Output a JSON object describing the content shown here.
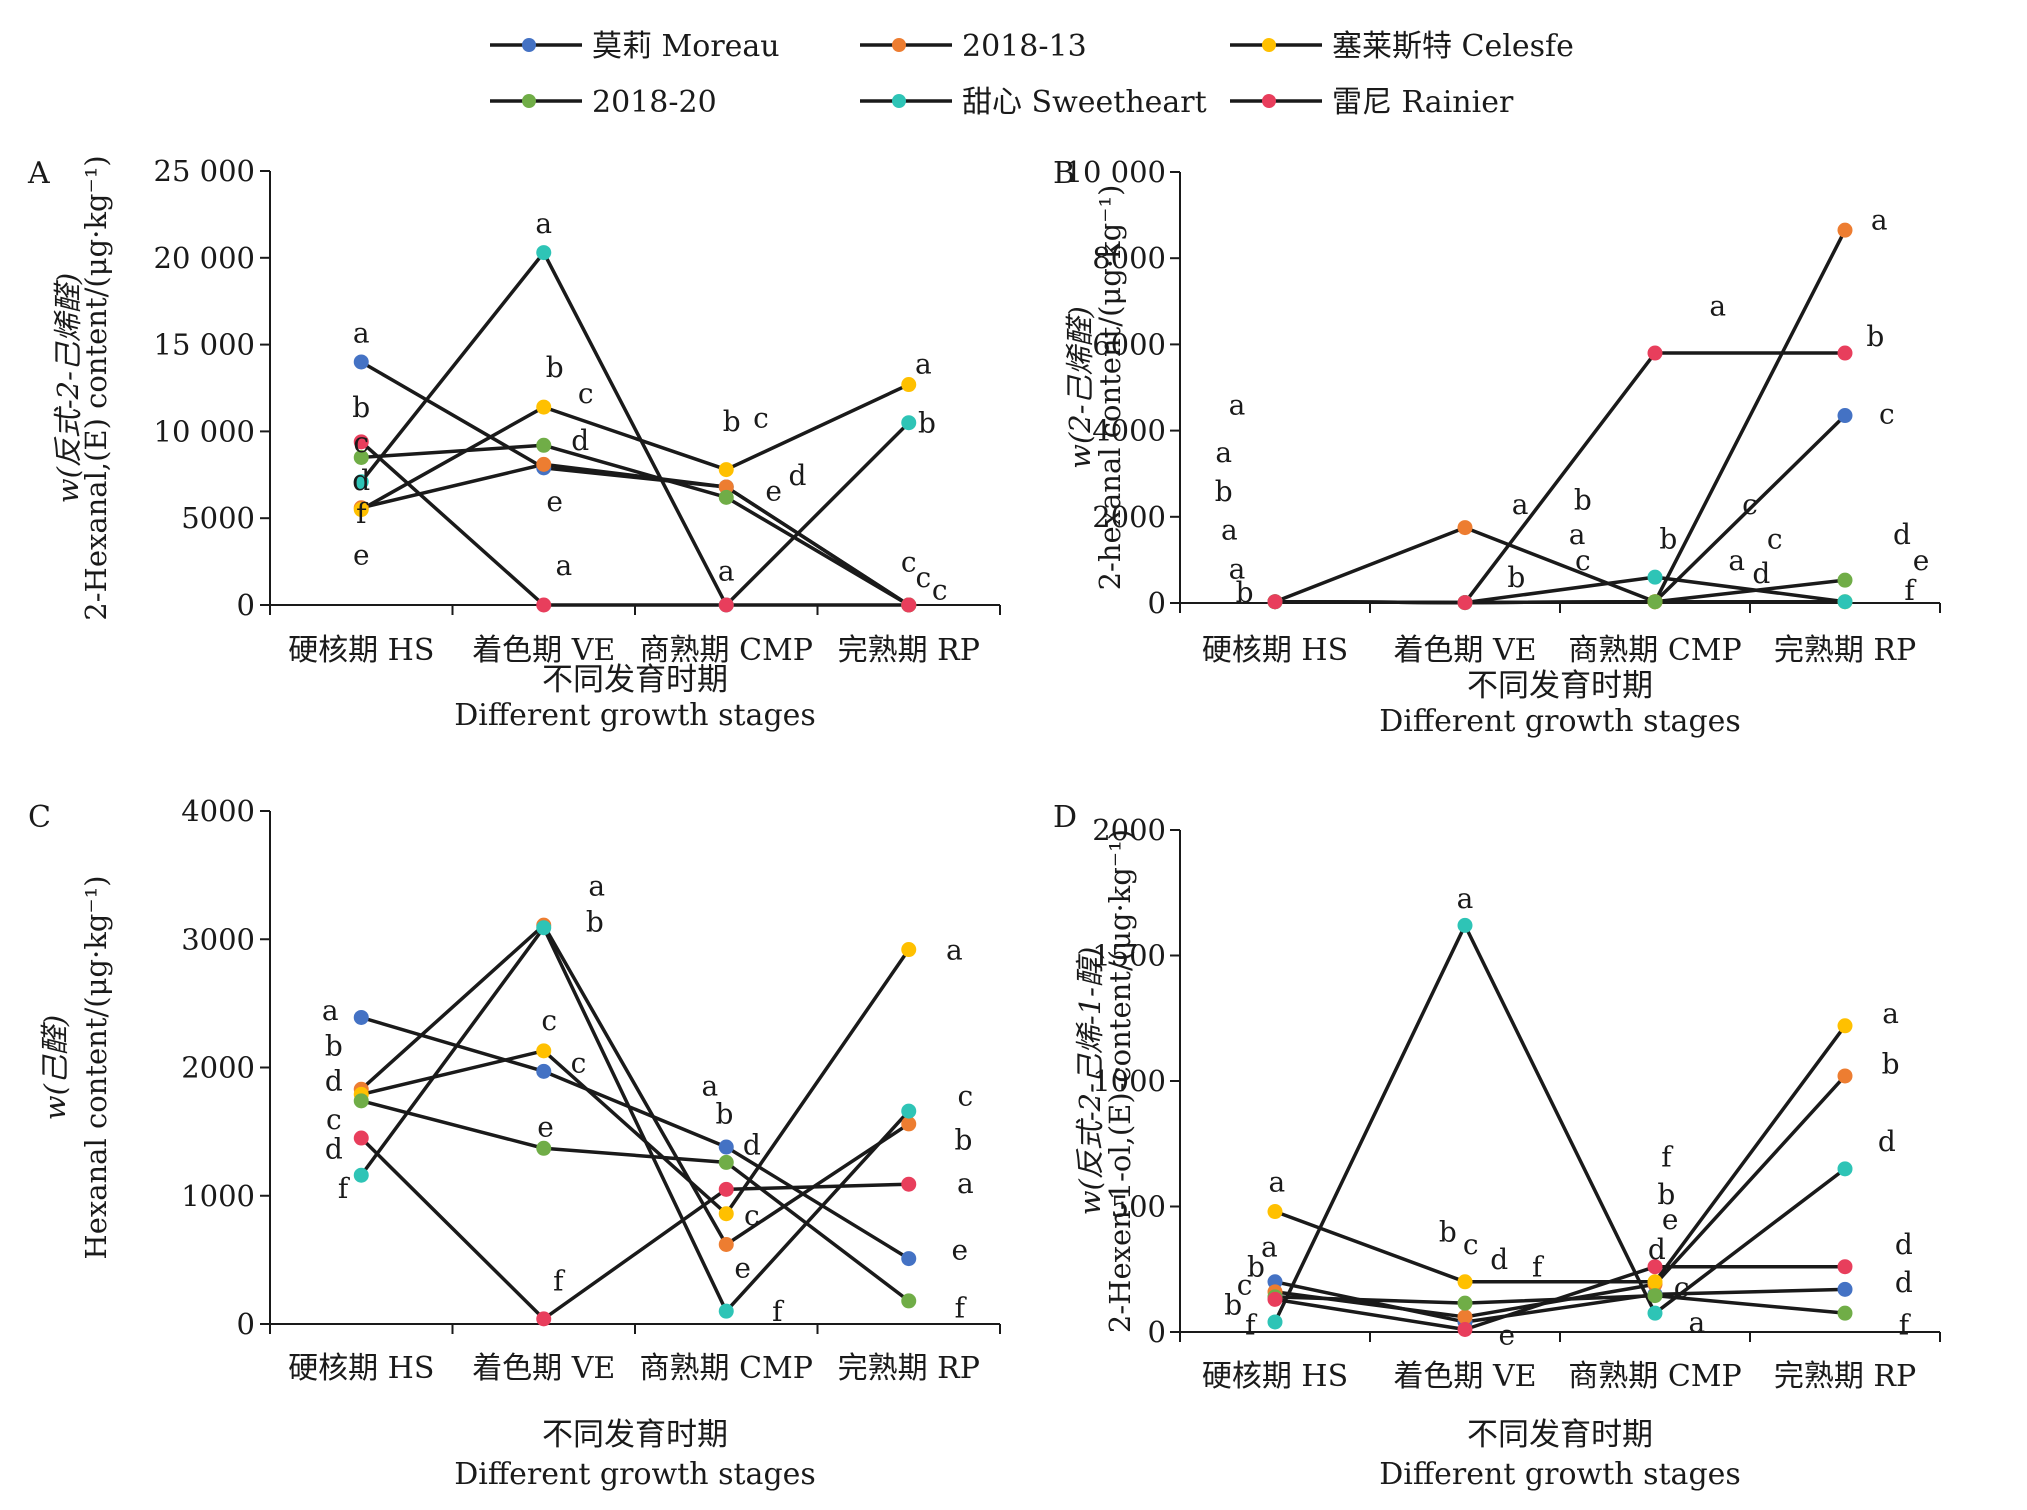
{
  "legend": [
    {
      "name": "莫莉 Moreau",
      "color": "#4472c4"
    },
    {
      "name": "2018-13",
      "color": "#ed7d31"
    },
    {
      "name": "塞莱斯特 Celesfe",
      "color": "#ffc000"
    },
    {
      "name": "2018-20",
      "color": "#70ad47"
    },
    {
      "name": "甜心 Sweetheart",
      "color": "#2ec4b6"
    },
    {
      "name": "雷尼 Rainier",
      "color": "#e83e5c"
    }
  ],
  "chart_data": [
    {
      "panel": "A",
      "type": "line",
      "categories": [
        "硬核期 HS",
        "着色期 VE",
        "商熟期 CMP",
        "完熟期 RP"
      ],
      "xlabel_cn": "不同发育时期",
      "xlabel_en": "Different growth stages",
      "ylabel_cn": "w(反式-2-己烯醛)",
      "ylabel_en": "2-Hexanal,(E) content/(μg·kg⁻¹)",
      "ylim": [
        0,
        25000
      ],
      "yticks": [
        0,
        5000,
        10000,
        15000,
        20000,
        25000
      ],
      "ytick_labels": [
        "0",
        "5000",
        "10 000",
        "15 000",
        "20 000",
        "25 000"
      ],
      "series": [
        {
          "name": "莫莉 Moreau",
          "values": [
            14000,
            7900,
            6800,
            0
          ]
        },
        {
          "name": "2018-13",
          "values": [
            5600,
            8100,
            6800,
            0
          ]
        },
        {
          "name": "塞莱斯特 Celesfe",
          "values": [
            5500,
            11400,
            7800,
            12700
          ]
        },
        {
          "name": "2018-20",
          "values": [
            8500,
            9200,
            6200,
            0
          ]
        },
        {
          "name": "甜心 Sweetheart",
          "values": [
            7100,
            20300,
            0,
            10500
          ]
        },
        {
          "name": "雷尼 Rainier",
          "values": [
            9400,
            0,
            0,
            0
          ]
        }
      ],
      "letters": [
        {
          "text": "a",
          "cat": 0,
          "y": 15700
        },
        {
          "text": "b",
          "cat": 0,
          "y": 11400
        },
        {
          "text": "c",
          "cat": 0,
          "y": 9400
        },
        {
          "text": "d",
          "cat": 0,
          "y": 7200
        },
        {
          "text": "f",
          "cat": 0,
          "y": 5300
        },
        {
          "text": "e",
          "cat": 0,
          "y": 2900
        },
        {
          "text": "a",
          "cat": 1,
          "y": 22000
        },
        {
          "text": "b",
          "cat": 1,
          "y": 13700,
          "dx": 0.06
        },
        {
          "text": "c",
          "cat": 1,
          "y": 12200,
          "dx": 0.23
        },
        {
          "text": "d",
          "cat": 1,
          "y": 9500,
          "dx": 0.2
        },
        {
          "text": "e",
          "cat": 1,
          "y": 6000,
          "dx": 0.06
        },
        {
          "text": "a",
          "cat": 1,
          "y": 2300,
          "dx": 0.11
        },
        {
          "text": "b",
          "cat": 2,
          "y": 10600,
          "dx": 0.03
        },
        {
          "text": "c",
          "cat": 2,
          "y": 10800,
          "dx": 0.19
        },
        {
          "text": "e",
          "cat": 2,
          "y": 6600,
          "dx": 0.26
        },
        {
          "text": "d",
          "cat": 2,
          "y": 7500,
          "dx": 0.39
        },
        {
          "text": "a",
          "cat": 2,
          "y": 2000
        },
        {
          "text": "a",
          "cat": 3,
          "y": 13900,
          "dx": 0.08
        },
        {
          "text": "b",
          "cat": 3,
          "y": 10500,
          "dx": 0.1
        },
        {
          "text": "c",
          "cat": 3,
          "y": 2500
        },
        {
          "text": "c",
          "cat": 3,
          "y": 1600,
          "dx": 0.08
        },
        {
          "text": "c",
          "cat": 3,
          "y": 900,
          "dx": 0.17
        }
      ]
    },
    {
      "panel": "B",
      "type": "line",
      "categories": [
        "硬核期 HS",
        "着色期 VE",
        "商熟期 CMP",
        "完熟期 RP"
      ],
      "xlabel_cn": "不同发育时期",
      "xlabel_en": "Different growth stages",
      "ylabel_cn": "w(2-己烯醛)",
      "ylabel_en": "2-hexanal content/(μg·kg⁻¹)",
      "ylim": [
        0,
        10000
      ],
      "yticks": [
        0,
        2000,
        4000,
        6000,
        8000,
        10000
      ],
      "ytick_labels": [
        "0",
        "2000",
        "4000",
        "6000",
        "8000",
        "10 000"
      ],
      "series": [
        {
          "name": "莫莉 Moreau",
          "values": [
            30,
            10,
            30,
            4350
          ]
        },
        {
          "name": "2018-13",
          "values": [
            30,
            1750,
            30,
            8650
          ]
        },
        {
          "name": "塞莱斯特 Celesfe",
          "values": [
            30,
            10,
            30,
            30
          ]
        },
        {
          "name": "2018-20",
          "values": [
            30,
            10,
            30,
            530
          ]
        },
        {
          "name": "甜心 Sweetheart",
          "values": [
            30,
            10,
            600,
            30
          ]
        },
        {
          "name": "雷尼 Rainier",
          "values": [
            30,
            10,
            5800,
            5800
          ]
        }
      ],
      "letters": [
        {
          "text": "a",
          "cat": 0,
          "y": 4600,
          "dx": -0.2
        },
        {
          "text": "a",
          "cat": 0,
          "y": 3500,
          "dx": -0.27
        },
        {
          "text": "b",
          "cat": 0,
          "y": 2600,
          "dx": -0.27
        },
        {
          "text": "a",
          "cat": 0,
          "y": 1700,
          "dx": -0.24
        },
        {
          "text": "a",
          "cat": 0,
          "y": 800,
          "dx": -0.2
        },
        {
          "text": "b",
          "cat": 0,
          "y": 250,
          "dx": -0.16
        },
        {
          "text": "a",
          "cat": 1,
          "y": 2300,
          "dx": 0.29
        },
        {
          "text": "b",
          "cat": 1,
          "y": 600,
          "dx": 0.27
        },
        {
          "text": "b",
          "cat": 2,
          "y": 2400,
          "dx": -0.38
        },
        {
          "text": "a",
          "cat": 2,
          "y": 1600,
          "dx": -0.41
        },
        {
          "text": "c",
          "cat": 2,
          "y": 1000,
          "dx": -0.38
        },
        {
          "text": "a",
          "cat": 2,
          "y": 6900,
          "dx": 0.33
        },
        {
          "text": "b",
          "cat": 2,
          "y": 1500,
          "dx": 0.07
        },
        {
          "text": "c",
          "cat": 2,
          "y": 2300,
          "dx": 0.5
        },
        {
          "text": "c",
          "cat": 2,
          "y": 1500,
          "dx": 0.63
        },
        {
          "text": "a",
          "cat": 2,
          "y": 1000,
          "dx": 0.43
        },
        {
          "text": "d",
          "cat": 2,
          "y": 700,
          "dx": 0.56
        },
        {
          "text": "a",
          "cat": 3,
          "y": 8900,
          "dx": 0.18
        },
        {
          "text": "b",
          "cat": 3,
          "y": 6200,
          "dx": 0.16
        },
        {
          "text": "c",
          "cat": 3,
          "y": 4400,
          "dx": 0.22
        },
        {
          "text": "d",
          "cat": 3,
          "y": 1600,
          "dx": 0.3
        },
        {
          "text": "e",
          "cat": 3,
          "y": 1000,
          "dx": 0.4
        },
        {
          "text": "f",
          "cat": 3,
          "y": 300,
          "dx": 0.34
        }
      ]
    },
    {
      "panel": "C",
      "type": "line",
      "categories": [
        "硬核期 HS",
        "着色期 VE",
        "商熟期 CMP",
        "完熟期 RP"
      ],
      "xlabel_cn": "不同发育时期",
      "xlabel_en": "Different growth stages",
      "ylabel_cn": "w(己醛)",
      "ylabel_en": "Hexanal content/(μg·kg⁻¹)",
      "ylim": [
        0,
        4000
      ],
      "yticks": [
        0,
        1000,
        2000,
        3000,
        4000
      ],
      "ytick_labels": [
        "0",
        "1000",
        "2000",
        "3000",
        "4000"
      ],
      "series": [
        {
          "name": "莫莉 Moreau",
          "values": [
            2390,
            1970,
            1380,
            510
          ]
        },
        {
          "name": "2018-13",
          "values": [
            1830,
            3110,
            620,
            1560
          ]
        },
        {
          "name": "塞莱斯特 Celesfe",
          "values": [
            1790,
            2130,
            860,
            2920
          ]
        },
        {
          "name": "2018-20",
          "values": [
            1740,
            1370,
            1260,
            180
          ]
        },
        {
          "name": "甜心 Sweetheart",
          "values": [
            1160,
            3090,
            100,
            1660
          ]
        },
        {
          "name": "雷尼 Rainier",
          "values": [
            1450,
            40,
            1050,
            1090
          ]
        }
      ],
      "letters": [
        {
          "text": "a",
          "cat": 0,
          "y": 2450,
          "dx": -0.17
        },
        {
          "text": "b",
          "cat": 0,
          "y": 2170,
          "dx": -0.15
        },
        {
          "text": "d",
          "cat": 0,
          "y": 1900,
          "dx": -0.15
        },
        {
          "text": "c",
          "cat": 0,
          "y": 1600,
          "dx": -0.15
        },
        {
          "text": "d",
          "cat": 0,
          "y": 1370,
          "dx": -0.15
        },
        {
          "text": "f",
          "cat": 0,
          "y": 1060,
          "dx": -0.1
        },
        {
          "text": "a",
          "cat": 1,
          "y": 3420,
          "dx": 0.29
        },
        {
          "text": "b",
          "cat": 1,
          "y": 3140,
          "dx": 0.28
        },
        {
          "text": "c",
          "cat": 1,
          "y": 2370,
          "dx": 0.03
        },
        {
          "text": "c",
          "cat": 1,
          "y": 2040,
          "dx": 0.19
        },
        {
          "text": "e",
          "cat": 1,
          "y": 1540,
          "dx": 0.01
        },
        {
          "text": "f",
          "cat": 1,
          "y": 340,
          "dx": 0.08
        },
        {
          "text": "a",
          "cat": 2,
          "y": 1860,
          "dx": -0.09
        },
        {
          "text": "b",
          "cat": 2,
          "y": 1640,
          "dx": -0.01
        },
        {
          "text": "d",
          "cat": 2,
          "y": 1400,
          "dx": 0.14
        },
        {
          "text": "c",
          "cat": 2,
          "y": 850,
          "dx": 0.14
        },
        {
          "text": "e",
          "cat": 2,
          "y": 440,
          "dx": 0.09
        },
        {
          "text": "f",
          "cat": 2,
          "y": 100,
          "dx": 0.28
        },
        {
          "text": "a",
          "cat": 3,
          "y": 2920,
          "dx": 0.25
        },
        {
          "text": "c",
          "cat": 3,
          "y": 1780,
          "dx": 0.31
        },
        {
          "text": "b",
          "cat": 3,
          "y": 1440,
          "dx": 0.3
        },
        {
          "text": "a",
          "cat": 3,
          "y": 1100,
          "dx": 0.31
        },
        {
          "text": "e",
          "cat": 3,
          "y": 580,
          "dx": 0.28
        },
        {
          "text": "f",
          "cat": 3,
          "y": 130,
          "dx": 0.28
        }
      ]
    },
    {
      "panel": "D",
      "type": "line",
      "categories": [
        "硬核期 HS",
        "着色期 VE",
        "商熟期 CMP",
        "完熟期 RP"
      ],
      "xlabel_cn": "不同发育时期",
      "xlabel_en": "Different growth stages",
      "ylabel_cn": "w(反式-2-己烯-1-醇)",
      "ylabel_en": "2-Hexen-1-ol,(E)-content/(μg·kg⁻¹)",
      "ylim": [
        0,
        2000
      ],
      "yticks": [
        0,
        500,
        1000,
        1500,
        2000
      ],
      "ytick_labels": [
        "0",
        "500",
        "1000",
        "1500",
        "2000"
      ],
      "series": [
        {
          "name": "莫莉 Moreau",
          "values": [
            200,
            40,
            150,
            170
          ]
        },
        {
          "name": "2018-13",
          "values": [
            160,
            60,
            190,
            1020
          ]
        },
        {
          "name": "塞莱斯特 Celesfe",
          "values": [
            480,
            200,
            200,
            1220
          ]
        },
        {
          "name": "2018-20",
          "values": [
            140,
            115,
            145,
            75
          ]
        },
        {
          "name": "甜心 Sweetheart",
          "values": [
            40,
            1620,
            75,
            650
          ]
        },
        {
          "name": "雷尼 Rainier",
          "values": [
            130,
            10,
            260,
            260
          ]
        }
      ],
      "letters": [
        {
          "text": "a",
          "cat": 0,
          "y": 600,
          "dx": 0.01
        },
        {
          "text": "a",
          "cat": 0,
          "y": 340,
          "dx": -0.03
        },
        {
          "text": "b",
          "cat": 0,
          "y": 260,
          "dx": -0.1
        },
        {
          "text": "c",
          "cat": 0,
          "y": 190,
          "dx": -0.16
        },
        {
          "text": "b",
          "cat": 0,
          "y": 110,
          "dx": -0.22
        },
        {
          "text": "f",
          "cat": 0,
          "y": 30,
          "dx": -0.13
        },
        {
          "text": "a",
          "cat": 1,
          "y": 1730,
          "dx": 0
        },
        {
          "text": "b",
          "cat": 1,
          "y": 400,
          "dx": -0.09
        },
        {
          "text": "c",
          "cat": 1,
          "y": 350,
          "dx": 0.03
        },
        {
          "text": "d",
          "cat": 1,
          "y": 290,
          "dx": 0.18
        },
        {
          "text": "f",
          "cat": 1,
          "y": 260,
          "dx": 0.38
        },
        {
          "text": "e",
          "cat": 1,
          "y": -10,
          "dx": 0.22
        },
        {
          "text": "f",
          "cat": 2,
          "y": 700,
          "dx": 0.06
        },
        {
          "text": "b",
          "cat": 2,
          "y": 550,
          "dx": 0.06
        },
        {
          "text": "e",
          "cat": 2,
          "y": 450,
          "dx": 0.08
        },
        {
          "text": "d",
          "cat": 2,
          "y": 330,
          "dx": 0.01
        },
        {
          "text": "c",
          "cat": 2,
          "y": 180,
          "dx": 0.14
        },
        {
          "text": "a",
          "cat": 2,
          "y": 40,
          "dx": 0.22
        },
        {
          "text": "a",
          "cat": 3,
          "y": 1270,
          "dx": 0.24
        },
        {
          "text": "b",
          "cat": 3,
          "y": 1070,
          "dx": 0.24
        },
        {
          "text": "d",
          "cat": 3,
          "y": 760,
          "dx": 0.22
        },
        {
          "text": "d",
          "cat": 3,
          "y": 350,
          "dx": 0.31
        },
        {
          "text": "d",
          "cat": 3,
          "y": 200,
          "dx": 0.31
        },
        {
          "text": "f",
          "cat": 3,
          "y": 30,
          "dx": 0.31
        }
      ]
    }
  ]
}
